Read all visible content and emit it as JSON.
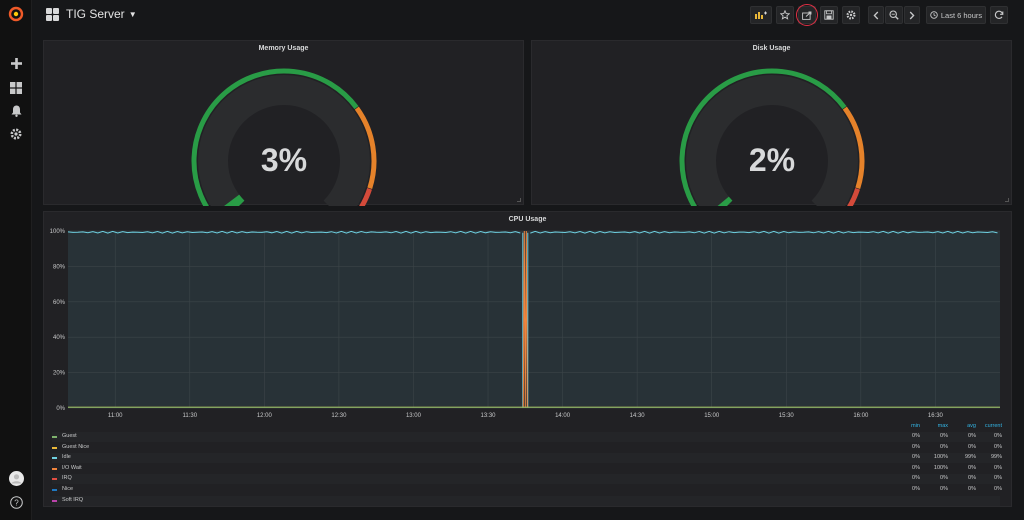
{
  "topbar": {
    "dashboard_title": "TIG Server",
    "time_range": "Last 6 hours"
  },
  "panels": {
    "memory": {
      "title": "Memory Usage",
      "value": "3%",
      "percent": 3
    },
    "disk": {
      "title": "Disk Usage",
      "value": "2%",
      "percent": 2
    },
    "cpu": {
      "title": "CPU Usage"
    }
  },
  "colors": {
    "gauge_green": "#299c46",
    "gauge_orange": "#e5822a",
    "gauge_red": "#d44a3a",
    "highlight": "#e02f44"
  },
  "chart_data": {
    "type": "line",
    "title": "CPU Usage",
    "x_ticks": [
      "11:00",
      "11:30",
      "12:00",
      "12:30",
      "13:00",
      "13:30",
      "14:00",
      "14:30",
      "15:00",
      "15:30",
      "16:00",
      "16:30"
    ],
    "y_ticks": [
      "100%",
      "80%",
      "60%",
      "40%",
      "20%",
      "0%"
    ],
    "ylim": [
      0,
      100
    ],
    "grid": true,
    "legend": {
      "placement": "bottom",
      "columns": [
        "min",
        "max",
        "avg",
        "current"
      ],
      "rows": [
        {
          "name": "Guest",
          "color": "#7eb26d",
          "min": "0%",
          "max": "0%",
          "avg": "0%",
          "current": "0%"
        },
        {
          "name": "Guest Nice",
          "color": "#eab839",
          "min": "0%",
          "max": "0%",
          "avg": "0%",
          "current": "0%"
        },
        {
          "name": "Idle",
          "color": "#6ed0e0",
          "min": "0%",
          "max": "100%",
          "avg": "99%",
          "current": "99%"
        },
        {
          "name": "I/O Wait",
          "color": "#ef843c",
          "min": "0%",
          "max": "100%",
          "avg": "0%",
          "current": "0%"
        },
        {
          "name": "IRQ",
          "color": "#e24d42",
          "min": "0%",
          "max": "0%",
          "avg": "0%",
          "current": "0%"
        },
        {
          "name": "Nice",
          "color": "#1f78c1",
          "min": "0%",
          "max": "0%",
          "avg": "0%",
          "current": "0%"
        },
        {
          "name": "Soft IRQ",
          "color": "#ba43a9",
          "min": "",
          "max": "",
          "avg": "",
          "current": ""
        }
      ]
    }
  }
}
